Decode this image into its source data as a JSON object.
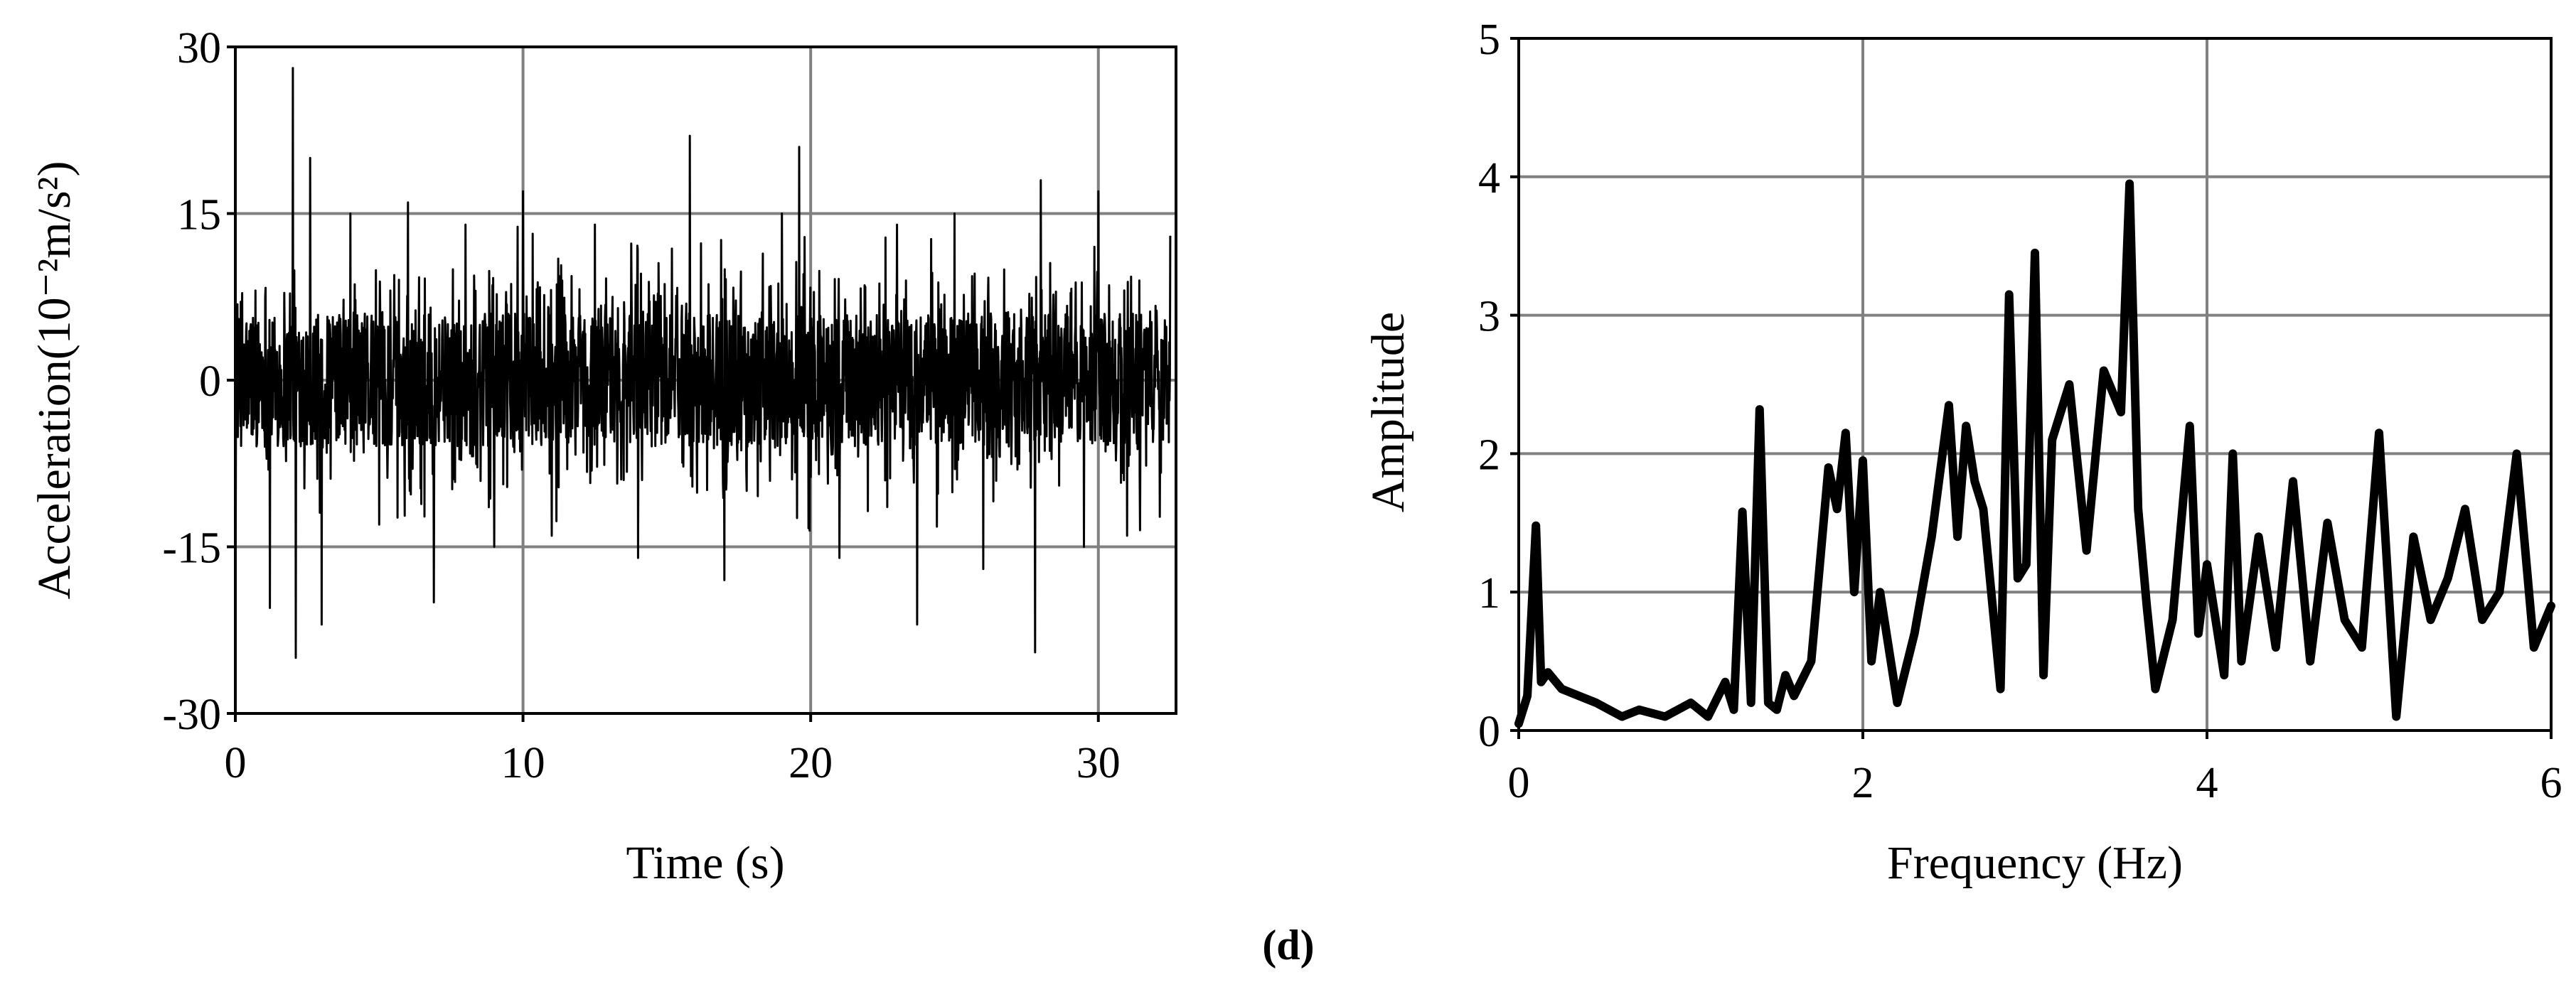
{
  "figure": {
    "caption": "(d)"
  },
  "chart_data": [
    {
      "type": "line",
      "title": "",
      "xlabel": "Time (s)",
      "ylabel": "Acceleration(10⁻²m/s²)",
      "xlim": [
        0,
        32.7
      ],
      "ylim": [
        -30,
        30
      ],
      "xticks": [
        0,
        10,
        20,
        30
      ],
      "yticks": [
        -30,
        -15,
        0,
        15,
        30
      ],
      "xtick_labels": [
        "0",
        "10",
        "20",
        "30"
      ],
      "ytick_labels": [
        "-30",
        "-15",
        "0",
        "15",
        "30"
      ],
      "grid": true,
      "legend": "none",
      "line_color": "#000000",
      "description_of_signal": "",
      "series": [
        {
          "x": [
            0,
            1.2,
            2.0,
            2.1,
            2.6,
            3.0,
            4.0,
            5.0,
            6.0,
            6.9,
            8.0,
            9.0,
            10.0,
            11.0,
            12.5,
            14.0,
            15.8,
            17.0,
            19.0,
            19.6,
            21.0,
            23.0,
            23.7,
            25.0,
            26.0,
            27.8,
            28.0,
            29.5,
            30.0,
            31.0,
            32.5
          ],
          "y": [
            0,
            -20.5,
            28.1,
            -25,
            20,
            -22,
            15,
            -13,
            16,
            -20,
            14,
            -15,
            17,
            -14,
            14,
            -16,
            22,
            -18,
            15,
            21,
            -16,
            14,
            -22,
            15,
            -17,
            -24.5,
            18,
            -15,
            17,
            -14,
            13
          ]
        }
      ]
    },
    {
      "type": "line",
      "title": "",
      "xlabel": "Frequency (Hz)",
      "ylabel": "Amplitude",
      "xlim": [
        0,
        6
      ],
      "ylim": [
        0,
        5
      ],
      "xticks": [
        0,
        2,
        4,
        6
      ],
      "yticks": [
        0,
        1,
        2,
        3,
        4,
        5
      ],
      "xtick_labels": [
        "0",
        "2",
        "4",
        "6"
      ],
      "ytick_labels": [
        "0",
        "1",
        "2",
        "3",
        "4",
        "5"
      ],
      "grid": true,
      "legend": "none",
      "line_color": "#000000",
      "series": [
        {
          "x": [
            0,
            0.05,
            0.1,
            0.13,
            0.17,
            0.25,
            0.35,
            0.45,
            0.6,
            0.7,
            0.85,
            1.0,
            1.1,
            1.2,
            1.25,
            1.3,
            1.35,
            1.4,
            1.45,
            1.5,
            1.55,
            1.6,
            1.7,
            1.8,
            1.85,
            1.9,
            1.95,
            2.0,
            2.05,
            2.1,
            2.2,
            2.3,
            2.4,
            2.5,
            2.55,
            2.6,
            2.65,
            2.7,
            2.8,
            2.85,
            2.9,
            2.95,
            3.0,
            3.05,
            3.1,
            3.2,
            3.3,
            3.4,
            3.5,
            3.55,
            3.6,
            3.65,
            3.7,
            3.8,
            3.9,
            3.95,
            4.0,
            4.1,
            4.15,
            4.2,
            4.3,
            4.4,
            4.5,
            4.6,
            4.7,
            4.8,
            4.9,
            5.0,
            5.1,
            5.2,
            5.3,
            5.4,
            5.5,
            5.6,
            5.7,
            5.8,
            5.9,
            6.0
          ],
          "y": [
            0.05,
            0.25,
            1.48,
            0.35,
            0.42,
            0.3,
            0.25,
            0.2,
            0.1,
            0.15,
            0.1,
            0.2,
            0.1,
            0.35,
            0.15,
            1.58,
            0.2,
            2.32,
            0.2,
            0.15,
            0.4,
            0.25,
            0.5,
            1.9,
            1.6,
            2.15,
            1.0,
            1.95,
            0.5,
            1.0,
            0.2,
            0.7,
            1.4,
            2.35,
            1.4,
            2.2,
            1.8,
            1.6,
            0.3,
            3.15,
            1.1,
            1.2,
            3.45,
            0.4,
            2.1,
            2.5,
            1.3,
            2.6,
            2.3,
            3.95,
            1.6,
            0.9,
            0.3,
            0.8,
            2.2,
            0.7,
            1.2,
            0.4,
            2.0,
            0.5,
            1.4,
            0.6,
            1.8,
            0.5,
            1.5,
            0.8,
            0.6,
            2.15,
            0.1,
            1.4,
            0.8,
            1.1,
            1.6,
            0.8,
            1.0,
            2.0,
            0.6,
            0.9
          ]
        }
      ]
    }
  ]
}
